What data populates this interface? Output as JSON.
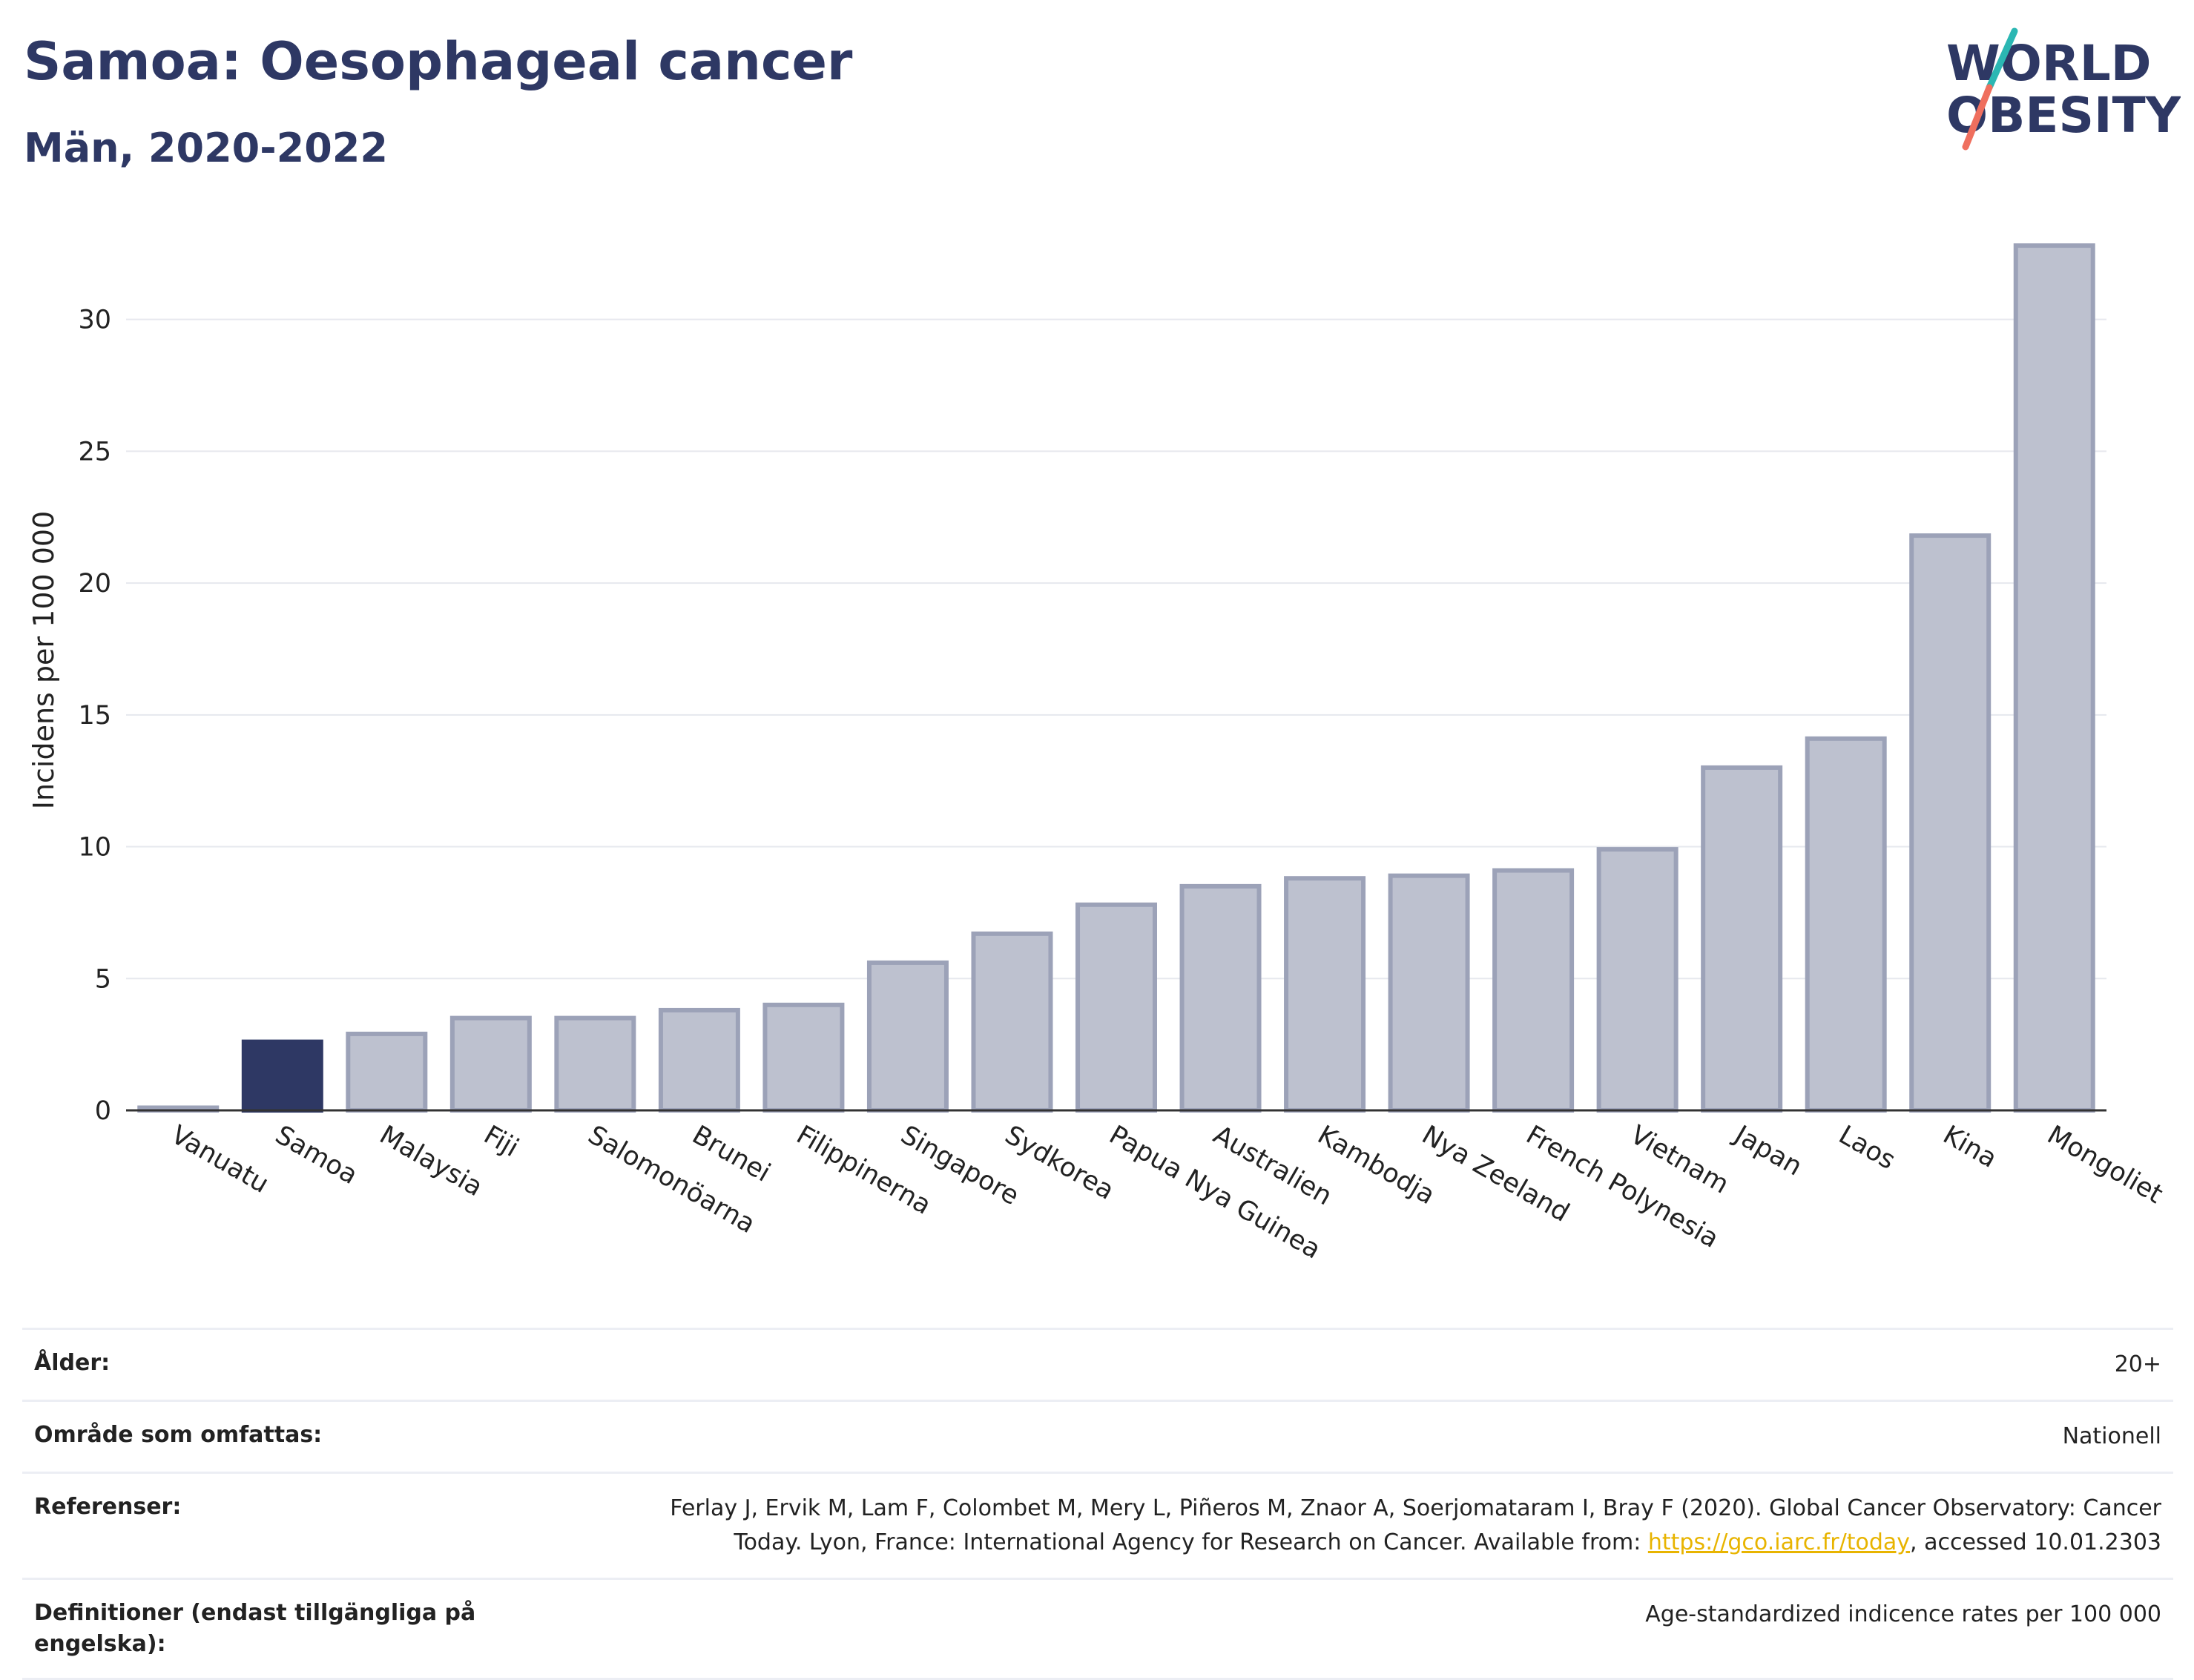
{
  "header": {
    "title": "Samoa: Oesophageal cancer",
    "subtitle": "Män, 2020-2022"
  },
  "logo": {
    "line1": "WORLD",
    "line2": "OBESITY",
    "accent_colors": [
      "#2bb7b3",
      "#ef6f5e"
    ]
  },
  "colors": {
    "highlight": "#2e3864",
    "bar": "#bdc1cf",
    "bar_border": "#9ca2b8",
    "title": "#2e3864",
    "link": "#e8b400"
  },
  "chart_data": {
    "type": "bar",
    "ylabel": "Incidens per 100 000",
    "ylim": [
      0,
      33
    ],
    "yticks": [
      0,
      5,
      10,
      15,
      20,
      25,
      30
    ],
    "grid": true,
    "highlight": "Samoa",
    "categories": [
      "Vanuatu",
      "Samoa",
      "Malaysia",
      "Fiji",
      "Salomonöarna",
      "Brunei",
      "Filippinerna",
      "Singapore",
      "Sydkorea",
      "Papua Nya Guinea",
      "Australien",
      "Kambodja",
      "Nya Zeeland",
      "French Polynesia",
      "Vietnam",
      "Japan",
      "Laos",
      "Kina",
      "Mongoliet"
    ],
    "values": [
      0.1,
      2.6,
      2.9,
      3.5,
      3.5,
      3.8,
      4.0,
      5.6,
      6.7,
      7.8,
      8.5,
      8.8,
      8.9,
      9.1,
      9.9,
      13.0,
      14.1,
      21.8,
      32.8
    ]
  },
  "info": {
    "age_label": "Ålder:",
    "age_value": "20+",
    "area_label": "Område som omfattas:",
    "area_value": "Nationell",
    "ref_label": "Referenser:",
    "ref_line1": "Ferlay J, Ervik M, Lam F, Colombet M, Mery L, Piñeros M, Znaor A, Soerjomataram I, Bray F (2020). Global Cancer Observatory: Cancer",
    "ref_line2_pre": "Today. Lyon, France: International Agency for Research on Cancer. Available from: ",
    "ref_link": "https://gco.iarc.fr/today",
    "ref_line2_post": ", accessed 10.01.2303",
    "def_label": "Definitioner (endast tillgängliga på engelska):",
    "def_value": "Age-standardized indicence rates per 100 000"
  }
}
